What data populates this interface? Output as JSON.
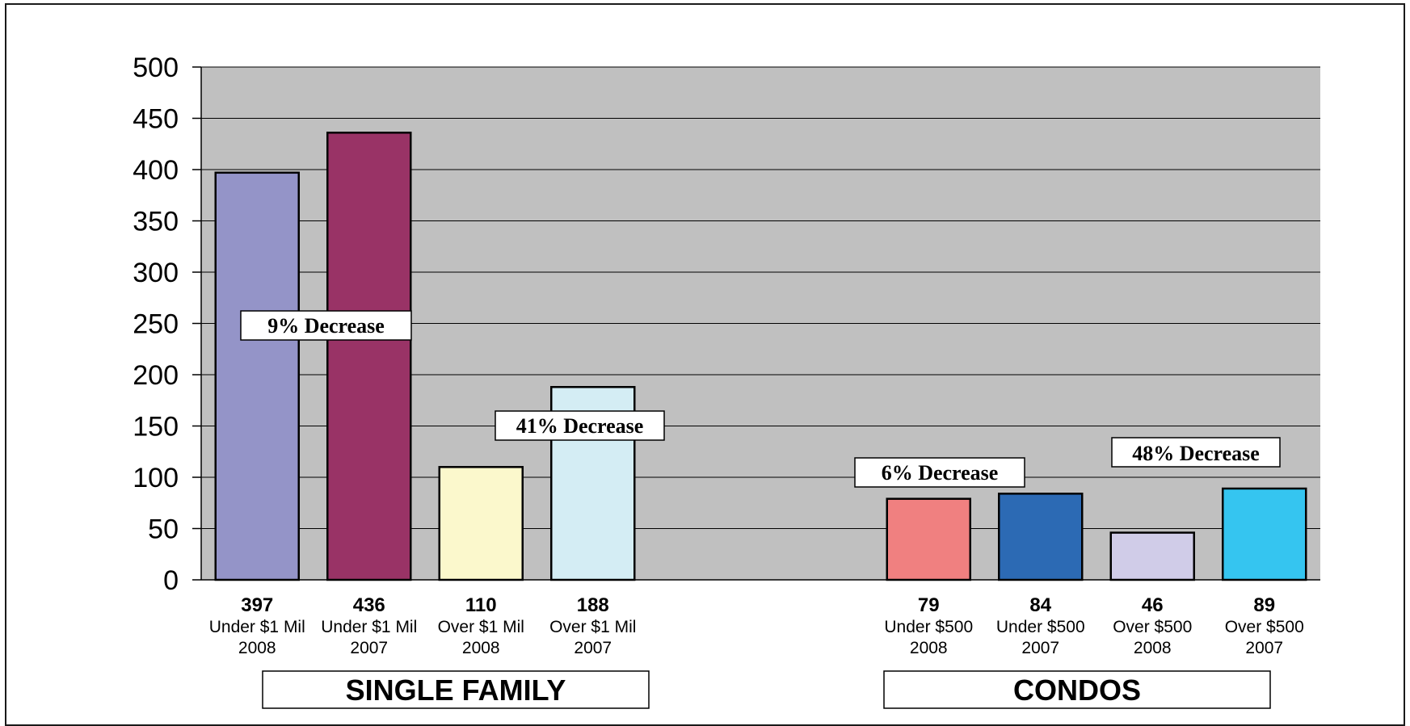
{
  "chart_data": {
    "type": "bar",
    "ylim": [
      0,
      500
    ],
    "yticks": [
      "0",
      "50",
      "100",
      "150",
      "200",
      "250",
      "300",
      "350",
      "400",
      "450",
      "500"
    ],
    "grid": true,
    "bars": [
      {
        "value": 397,
        "label": "397",
        "line1": "Under $1 Mil",
        "line2": "2008",
        "color": "#9494c8"
      },
      {
        "value": 436,
        "label": "436",
        "line1": "Under $1 Mil",
        "line2": "2007",
        "color": "#993366"
      },
      {
        "value": 110,
        "label": "110",
        "line1": "Over $1 Mil",
        "line2": "2008",
        "color": "#fbf8cc"
      },
      {
        "value": 188,
        "label": "188",
        "line1": "Over $1 Mil",
        "line2": "2007",
        "color": "#d4edf4"
      },
      {
        "value": 79,
        "label": "79",
        "line1": "Under $500",
        "line2": "2008",
        "color": "#f08080"
      },
      {
        "value": 84,
        "label": "84",
        "line1": "Under $500",
        "line2": "2007",
        "color": "#2c6ab4"
      },
      {
        "value": 46,
        "label": "46",
        "line1": "Over $500",
        "line2": "2008",
        "color": "#d0cce8"
      },
      {
        "value": 89,
        "label": "89",
        "line1": "Over $500",
        "line2": "2007",
        "color": "#35c5f0"
      }
    ],
    "annotations": [
      "9% Decrease",
      "41% Decrease",
      "6% Decrease",
      "48% Decrease"
    ],
    "groups": [
      "SINGLE FAMILY",
      "CONDOS"
    ]
  },
  "colors": {
    "plot_background": "#c0c0c0",
    "gridline": "#000000"
  }
}
